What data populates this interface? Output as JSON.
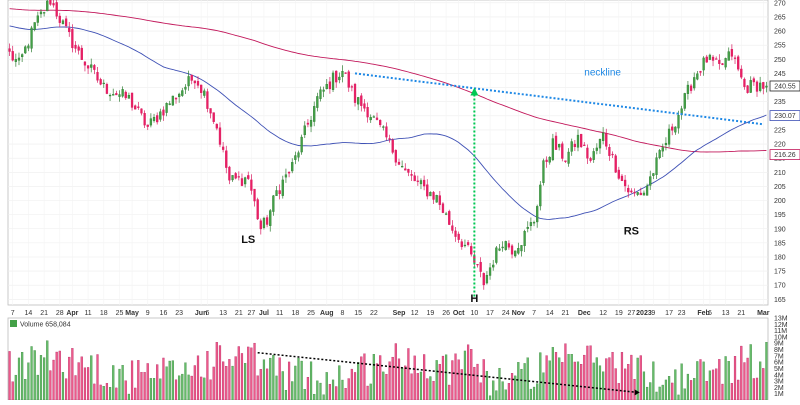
{
  "chart_data": {
    "type": "candlestick",
    "title": "",
    "price_axis": {
      "ylim": [
        163,
        271
      ],
      "ticks": [
        165,
        170,
        175,
        180,
        185,
        190,
        195,
        200,
        205,
        210,
        215,
        220,
        225,
        230,
        235,
        240,
        245,
        250,
        255,
        260,
        265,
        270
      ],
      "badges": [
        {
          "label": "240.55",
          "value": 240.55,
          "color": "#222222"
        },
        {
          "label": "230.07",
          "value": 230.07,
          "color": "#3f51b5"
        },
        {
          "label": "216.26",
          "value": 216.26,
          "color": "#c2185b"
        }
      ]
    },
    "x_axis": {
      "ticks": [
        {
          "label": "7",
          "i": 1
        },
        {
          "label": "14",
          "i": 6
        },
        {
          "label": "21",
          "i": 11
        },
        {
          "label": "28",
          "i": 16
        },
        {
          "label": "Apr",
          "i": 20,
          "bold": true
        },
        {
          "label": "11",
          "i": 25
        },
        {
          "label": "18",
          "i": 30
        },
        {
          "label": "25",
          "i": 35
        },
        {
          "label": "May",
          "i": 39,
          "bold": true
        },
        {
          "label": "9",
          "i": 44
        },
        {
          "label": "16",
          "i": 49
        },
        {
          "label": "23",
          "i": 54
        },
        {
          "label": "Jun",
          "i": 61,
          "bold": true
        },
        {
          "label": "6",
          "i": 63
        },
        {
          "label": "13",
          "i": 68
        },
        {
          "label": "21",
          "i": 73
        },
        {
          "label": "27",
          "i": 77
        },
        {
          "label": "Jul",
          "i": 81,
          "bold": true
        },
        {
          "label": "11",
          "i": 86
        },
        {
          "label": "18",
          "i": 91
        },
        {
          "label": "25",
          "i": 96
        },
        {
          "label": "Aug",
          "i": 101,
          "bold": true
        },
        {
          "label": "8",
          "i": 106
        },
        {
          "label": "15",
          "i": 111
        },
        {
          "label": "22",
          "i": 116
        },
        {
          "label": "Sep",
          "i": 124,
          "bold": true
        },
        {
          "label": "12",
          "i": 129
        },
        {
          "label": "19",
          "i": 134
        },
        {
          "label": "26",
          "i": 139
        },
        {
          "label": "Oct",
          "i": 143,
          "bold": true
        },
        {
          "label": "10",
          "i": 148
        },
        {
          "label": "17",
          "i": 153
        },
        {
          "label": "24",
          "i": 158
        },
        {
          "label": "Nov",
          "i": 162,
          "bold": true
        },
        {
          "label": "7",
          "i": 167
        },
        {
          "label": "14",
          "i": 172
        },
        {
          "label": "21",
          "i": 177
        },
        {
          "label": "Dec",
          "i": 183,
          "bold": true
        },
        {
          "label": "12",
          "i": 189
        },
        {
          "label": "19",
          "i": 194
        },
        {
          "label": "27",
          "i": 198
        },
        {
          "label": "2023",
          "i": 202,
          "bold": true
        },
        {
          "label": "9",
          "i": 205
        },
        {
          "label": "17",
          "i": 210
        },
        {
          "label": "23",
          "i": 214
        },
        {
          "label": "Feb",
          "i": 221,
          "bold": true
        },
        {
          "label": "6",
          "i": 223
        },
        {
          "label": "13",
          "i": 228
        },
        {
          "label": "21",
          "i": 233
        },
        {
          "label": "Mar",
          "i": 240,
          "bold": true
        }
      ]
    },
    "series": [
      {
        "name": "",
        "kind": "moving-average",
        "color": "#c2185b"
      },
      {
        "name": "",
        "kind": "moving-average",
        "color": "#3f51b5"
      }
    ],
    "price_path": [
      [
        0,
        252
      ],
      [
        3,
        248
      ],
      [
        8,
        262
      ],
      [
        13,
        271
      ],
      [
        18,
        260
      ],
      [
        22,
        252
      ],
      [
        30,
        240
      ],
      [
        38,
        236
      ],
      [
        44,
        226
      ],
      [
        52,
        236
      ],
      [
        59,
        244
      ],
      [
        62,
        238
      ],
      [
        66,
        226
      ],
      [
        70,
        207
      ],
      [
        76,
        208
      ],
      [
        80,
        190
      ],
      [
        82,
        193
      ],
      [
        85,
        203
      ],
      [
        90,
        212
      ],
      [
        94,
        224
      ],
      [
        98,
        236
      ],
      [
        103,
        243
      ],
      [
        106,
        246
      ],
      [
        110,
        236
      ],
      [
        114,
        232
      ],
      [
        120,
        222
      ],
      [
        126,
        210
      ],
      [
        131,
        205
      ],
      [
        136,
        201
      ],
      [
        141,
        190
      ],
      [
        145,
        184
      ],
      [
        148,
        178
      ],
      [
        151,
        171
      ],
      [
        154,
        179
      ],
      [
        157,
        186
      ],
      [
        160,
        183
      ],
      [
        163,
        186
      ],
      [
        167,
        193
      ],
      [
        170,
        212
      ],
      [
        173,
        220
      ],
      [
        177,
        215
      ],
      [
        181,
        222
      ],
      [
        185,
        214
      ],
      [
        189,
        223
      ],
      [
        192,
        215
      ],
      [
        195,
        207
      ],
      [
        198,
        202
      ],
      [
        202,
        203
      ],
      [
        206,
        213
      ],
      [
        211,
        226
      ],
      [
        214,
        233
      ],
      [
        218,
        244
      ],
      [
        222,
        250
      ],
      [
        226,
        247
      ],
      [
        230,
        252
      ],
      [
        234,
        240
      ],
      [
        238,
        241
      ],
      [
        241,
        240.55
      ]
    ],
    "neckline": {
      "label": "neckline",
      "from": {
        "i": 110,
        "price": 245
      },
      "to": {
        "i": 240,
        "price": 227
      }
    },
    "measured_move": {
      "i": 148,
      "from_price": 166,
      "to_price": 240
    },
    "annotations": [
      {
        "label": "LS",
        "i": 76,
        "price": 185
      },
      {
        "label": "H",
        "i": 148,
        "price": 164
      },
      {
        "label": "RS",
        "i": 198,
        "price": 188
      }
    ],
    "volume": {
      "legend_label": "Volume",
      "legend_value": "658,084",
      "ylim": [
        0,
        13
      ],
      "ticks": [
        {
          "label": "1M",
          "v": 1
        },
        {
          "label": "2M",
          "v": 2
        },
        {
          "label": "3M",
          "v": 3
        },
        {
          "label": "4M",
          "v": 4
        },
        {
          "label": "5M",
          "v": 5
        },
        {
          "label": "6M",
          "v": 6
        },
        {
          "label": "7M",
          "v": 7
        },
        {
          "label": "8M",
          "v": 8
        },
        {
          "label": "9M",
          "v": 9
        },
        {
          "label": "10M",
          "v": 10
        },
        {
          "label": "11M",
          "v": 11
        },
        {
          "label": "12M",
          "v": 12
        },
        {
          "label": "13M",
          "v": 13
        }
      ],
      "trendline": {
        "from": {
          "i": 79,
          "v": 7.5
        },
        "to": {
          "i": 200,
          "v": 1.2
        }
      }
    }
  }
}
